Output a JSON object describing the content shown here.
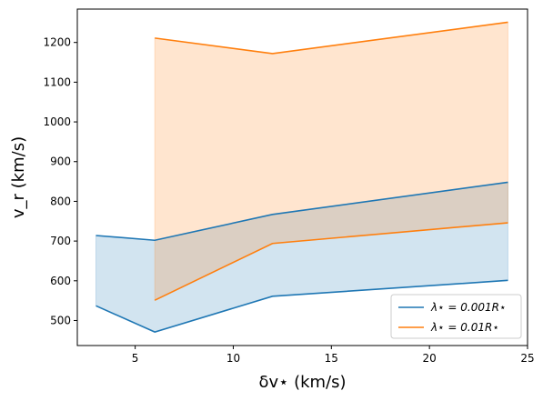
{
  "chart_data": {
    "type": "line",
    "xlabel": "δv⋆ (km/s)",
    "ylabel": "v_r (km/s)",
    "xlim": [
      2.05,
      25.0
    ],
    "ylim": [
      437,
      1284
    ],
    "xticks": [
      5,
      10,
      15,
      20,
      25
    ],
    "yticks": [
      500,
      600,
      700,
      800,
      900,
      1000,
      1100,
      1200
    ],
    "grid": false,
    "legend_position": "bottom-right",
    "series": [
      {
        "name": "λ⋆ = 0.001R⋆",
        "color": "#1f77b4",
        "fill_color": "#1f77b4",
        "x": [
          3,
          6,
          12,
          24
        ],
        "upper": [
          714,
          702,
          767,
          848
        ],
        "lower": [
          537,
          471,
          561,
          601
        ]
      },
      {
        "name": "λ⋆ = 0.01R⋆",
        "color": "#ff7f0e",
        "fill_color": "#ff7f0e",
        "x": [
          6,
          12,
          24
        ],
        "upper": [
          1211,
          1172,
          1251
        ],
        "lower": [
          551,
          694,
          746
        ]
      }
    ]
  }
}
